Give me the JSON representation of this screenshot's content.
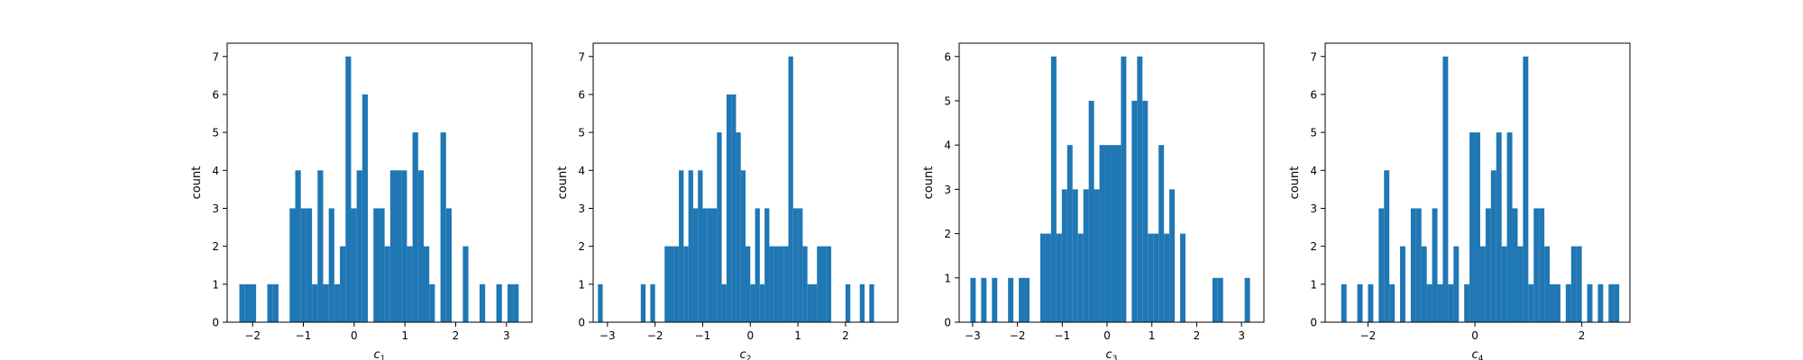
{
  "chart_data": [
    {
      "type": "bar",
      "ylabel": "count",
      "xlabel_base": "c",
      "xlabel_sub": "1",
      "xlim": [
        -2.5,
        3.5
      ],
      "ylim": [
        0,
        7.35
      ],
      "xticks": [
        -2,
        -1,
        0,
        1,
        2,
        3
      ],
      "yticks": [
        0,
        1,
        2,
        3,
        4,
        5,
        6,
        7
      ],
      "bins": [
        [
          -2.26,
          -2.15,
          1
        ],
        [
          -2.15,
          -2.04,
          1
        ],
        [
          -2.04,
          -1.93,
          1
        ],
        [
          -1.71,
          -1.6,
          1
        ],
        [
          -1.6,
          -1.49,
          1
        ],
        [
          -1.27,
          -1.16,
          3
        ],
        [
          -1.16,
          -1.05,
          4
        ],
        [
          -1.05,
          -0.94,
          3
        ],
        [
          -0.94,
          -0.83,
          3
        ],
        [
          -0.83,
          -0.72,
          1
        ],
        [
          -0.72,
          -0.61,
          4
        ],
        [
          -0.61,
          -0.5,
          1
        ],
        [
          -0.5,
          -0.39,
          3
        ],
        [
          -0.39,
          -0.28,
          1
        ],
        [
          -0.28,
          -0.17,
          2
        ],
        [
          -0.17,
          -0.06,
          7
        ],
        [
          -0.06,
          0.05,
          3
        ],
        [
          0.05,
          0.16,
          4
        ],
        [
          0.16,
          0.27,
          6
        ],
        [
          0.38,
          0.49,
          3
        ],
        [
          0.49,
          0.6,
          3
        ],
        [
          0.6,
          0.71,
          2
        ],
        [
          0.71,
          0.82,
          4
        ],
        [
          0.82,
          0.93,
          4
        ],
        [
          0.93,
          1.04,
          4
        ],
        [
          1.04,
          1.15,
          2
        ],
        [
          1.15,
          1.26,
          5
        ],
        [
          1.26,
          1.37,
          4
        ],
        [
          1.37,
          1.48,
          2
        ],
        [
          1.48,
          1.59,
          1
        ],
        [
          1.7,
          1.81,
          5
        ],
        [
          1.81,
          1.92,
          3
        ],
        [
          2.14,
          2.25,
          2
        ],
        [
          2.47,
          2.58,
          1
        ],
        [
          2.8,
          2.91,
          1
        ],
        [
          3.02,
          3.13,
          1
        ],
        [
          3.13,
          3.24,
          1
        ]
      ]
    },
    {
      "type": "bar",
      "ylabel": "count",
      "xlabel_base": "c",
      "xlabel_sub": "2",
      "xlim": [
        -3.3,
        3.1
      ],
      "ylim": [
        0,
        7.35
      ],
      "xticks": [
        -3,
        -2,
        -1,
        0,
        1,
        2
      ],
      "yticks": [
        0,
        1,
        2,
        3,
        4,
        5,
        6,
        7
      ],
      "bins": [
        [
          -3.2,
          -3.1,
          1
        ],
        [
          -2.3,
          -2.2,
          1
        ],
        [
          -2.1,
          -2.0,
          1
        ],
        [
          -1.8,
          -1.7,
          2
        ],
        [
          -1.7,
          -1.6,
          2
        ],
        [
          -1.6,
          -1.5,
          2
        ],
        [
          -1.5,
          -1.4,
          4
        ],
        [
          -1.4,
          -1.3,
          2
        ],
        [
          -1.3,
          -1.2,
          4
        ],
        [
          -1.2,
          -1.1,
          3
        ],
        [
          -1.1,
          -1.0,
          4
        ],
        [
          -1.0,
          -0.9,
          3
        ],
        [
          -0.9,
          -0.8,
          3
        ],
        [
          -0.8,
          -0.7,
          3
        ],
        [
          -0.7,
          -0.6,
          5
        ],
        [
          -0.6,
          -0.5,
          1
        ],
        [
          -0.5,
          -0.4,
          6
        ],
        [
          -0.4,
          -0.3,
          6
        ],
        [
          -0.3,
          -0.2,
          5
        ],
        [
          -0.2,
          -0.1,
          4
        ],
        [
          -0.1,
          0.0,
          2
        ],
        [
          0.0,
          0.1,
          1
        ],
        [
          0.1,
          0.2,
          3
        ],
        [
          0.2,
          0.3,
          1
        ],
        [
          0.3,
          0.4,
          3
        ],
        [
          0.4,
          0.5,
          2
        ],
        [
          0.5,
          0.6,
          2
        ],
        [
          0.6,
          0.7,
          2
        ],
        [
          0.7,
          0.8,
          2
        ],
        [
          0.8,
          0.9,
          7
        ],
        [
          0.9,
          1.0,
          3
        ],
        [
          1.0,
          1.1,
          3
        ],
        [
          1.1,
          1.2,
          2
        ],
        [
          1.2,
          1.3,
          1
        ],
        [
          1.3,
          1.4,
          1
        ],
        [
          1.4,
          1.5,
          2
        ],
        [
          1.5,
          1.6,
          2
        ],
        [
          1.6,
          1.7,
          2
        ],
        [
          2.0,
          2.1,
          1
        ],
        [
          2.3,
          2.4,
          1
        ],
        [
          2.5,
          2.6,
          1
        ]
      ]
    },
    {
      "type": "bar",
      "ylabel": "count",
      "xlabel_base": "c",
      "xlabel_sub": "3",
      "xlim": [
        -3.3,
        3.5
      ],
      "ylim": [
        0,
        6.3
      ],
      "xticks": [
        -3,
        -2,
        -1,
        0,
        1,
        2,
        3
      ],
      "yticks": [
        0,
        1,
        2,
        3,
        4,
        5,
        6
      ],
      "bins": [
        [
          -3.05,
          -2.93,
          1
        ],
        [
          -2.81,
          -2.69,
          1
        ],
        [
          -2.57,
          -2.45,
          1
        ],
        [
          -2.21,
          -2.09,
          1
        ],
        [
          -1.97,
          -1.85,
          1
        ],
        [
          -1.85,
          -1.73,
          1
        ],
        [
          -1.49,
          -1.37,
          2
        ],
        [
          -1.37,
          -1.25,
          2
        ],
        [
          -1.25,
          -1.13,
          6
        ],
        [
          -1.13,
          -1.01,
          2
        ],
        [
          -1.01,
          -0.89,
          3
        ],
        [
          -0.89,
          -0.77,
          4
        ],
        [
          -0.77,
          -0.65,
          3
        ],
        [
          -0.65,
          -0.53,
          2
        ],
        [
          -0.53,
          -0.41,
          3
        ],
        [
          -0.41,
          -0.29,
          5
        ],
        [
          -0.29,
          -0.17,
          3
        ],
        [
          -0.17,
          -0.05,
          4
        ],
        [
          -0.05,
          0.07,
          4
        ],
        [
          0.07,
          0.19,
          4
        ],
        [
          0.19,
          0.31,
          4
        ],
        [
          0.31,
          0.43,
          6
        ],
        [
          0.55,
          0.67,
          5
        ],
        [
          0.67,
          0.79,
          6
        ],
        [
          0.79,
          0.91,
          5
        ],
        [
          0.91,
          1.03,
          2
        ],
        [
          1.03,
          1.15,
          2
        ],
        [
          1.15,
          1.27,
          4
        ],
        [
          1.27,
          1.39,
          2
        ],
        [
          1.39,
          1.51,
          3
        ],
        [
          1.63,
          1.75,
          2
        ],
        [
          2.35,
          2.47,
          1
        ],
        [
          2.47,
          2.59,
          1
        ],
        [
          3.07,
          3.19,
          1
        ]
      ]
    },
    {
      "type": "bar",
      "ylabel": "count",
      "xlabel_base": "c",
      "xlabel_sub": "4",
      "xlim": [
        -2.8,
        2.9
      ],
      "ylim": [
        0,
        7.35
      ],
      "xticks": [
        -2,
        0,
        2
      ],
      "yticks": [
        0,
        1,
        2,
        3,
        4,
        5,
        6,
        7
      ],
      "bins": [
        [
          -2.5,
          -2.4,
          1
        ],
        [
          -2.2,
          -2.1,
          1
        ],
        [
          -2.0,
          -1.9,
          1
        ],
        [
          -1.8,
          -1.7,
          3
        ],
        [
          -1.7,
          -1.6,
          4
        ],
        [
          -1.6,
          -1.5,
          1
        ],
        [
          -1.4,
          -1.3,
          2
        ],
        [
          -1.2,
          -1.1,
          3
        ],
        [
          -1.1,
          -1.0,
          3
        ],
        [
          -1.0,
          -0.9,
          2
        ],
        [
          -0.9,
          -0.8,
          1
        ],
        [
          -0.8,
          -0.7,
          3
        ],
        [
          -0.7,
          -0.6,
          1
        ],
        [
          -0.6,
          -0.5,
          7
        ],
        [
          -0.5,
          -0.4,
          1
        ],
        [
          -0.4,
          -0.3,
          2
        ],
        [
          -0.2,
          -0.1,
          1
        ],
        [
          -0.1,
          0.0,
          5
        ],
        [
          0.0,
          0.1,
          5
        ],
        [
          0.1,
          0.2,
          2
        ],
        [
          0.2,
          0.3,
          3
        ],
        [
          0.3,
          0.4,
          4
        ],
        [
          0.4,
          0.5,
          5
        ],
        [
          0.5,
          0.6,
          2
        ],
        [
          0.6,
          0.7,
          5
        ],
        [
          0.7,
          0.8,
          3
        ],
        [
          0.8,
          0.9,
          2
        ],
        [
          0.9,
          1.0,
          7
        ],
        [
          1.0,
          1.1,
          1
        ],
        [
          1.1,
          1.2,
          3
        ],
        [
          1.2,
          1.3,
          3
        ],
        [
          1.3,
          1.4,
          2
        ],
        [
          1.4,
          1.5,
          1
        ],
        [
          1.5,
          1.6,
          1
        ],
        [
          1.7,
          1.8,
          1
        ],
        [
          1.8,
          1.9,
          2
        ],
        [
          1.9,
          2.0,
          2
        ],
        [
          2.1,
          2.2,
          1
        ],
        [
          2.3,
          2.4,
          1
        ],
        [
          2.5,
          2.6,
          1
        ],
        [
          2.6,
          2.7,
          1
        ]
      ]
    }
  ],
  "colors": {
    "bar": "#1f77b4",
    "axes": "#000000",
    "background": "#ffffff"
  }
}
